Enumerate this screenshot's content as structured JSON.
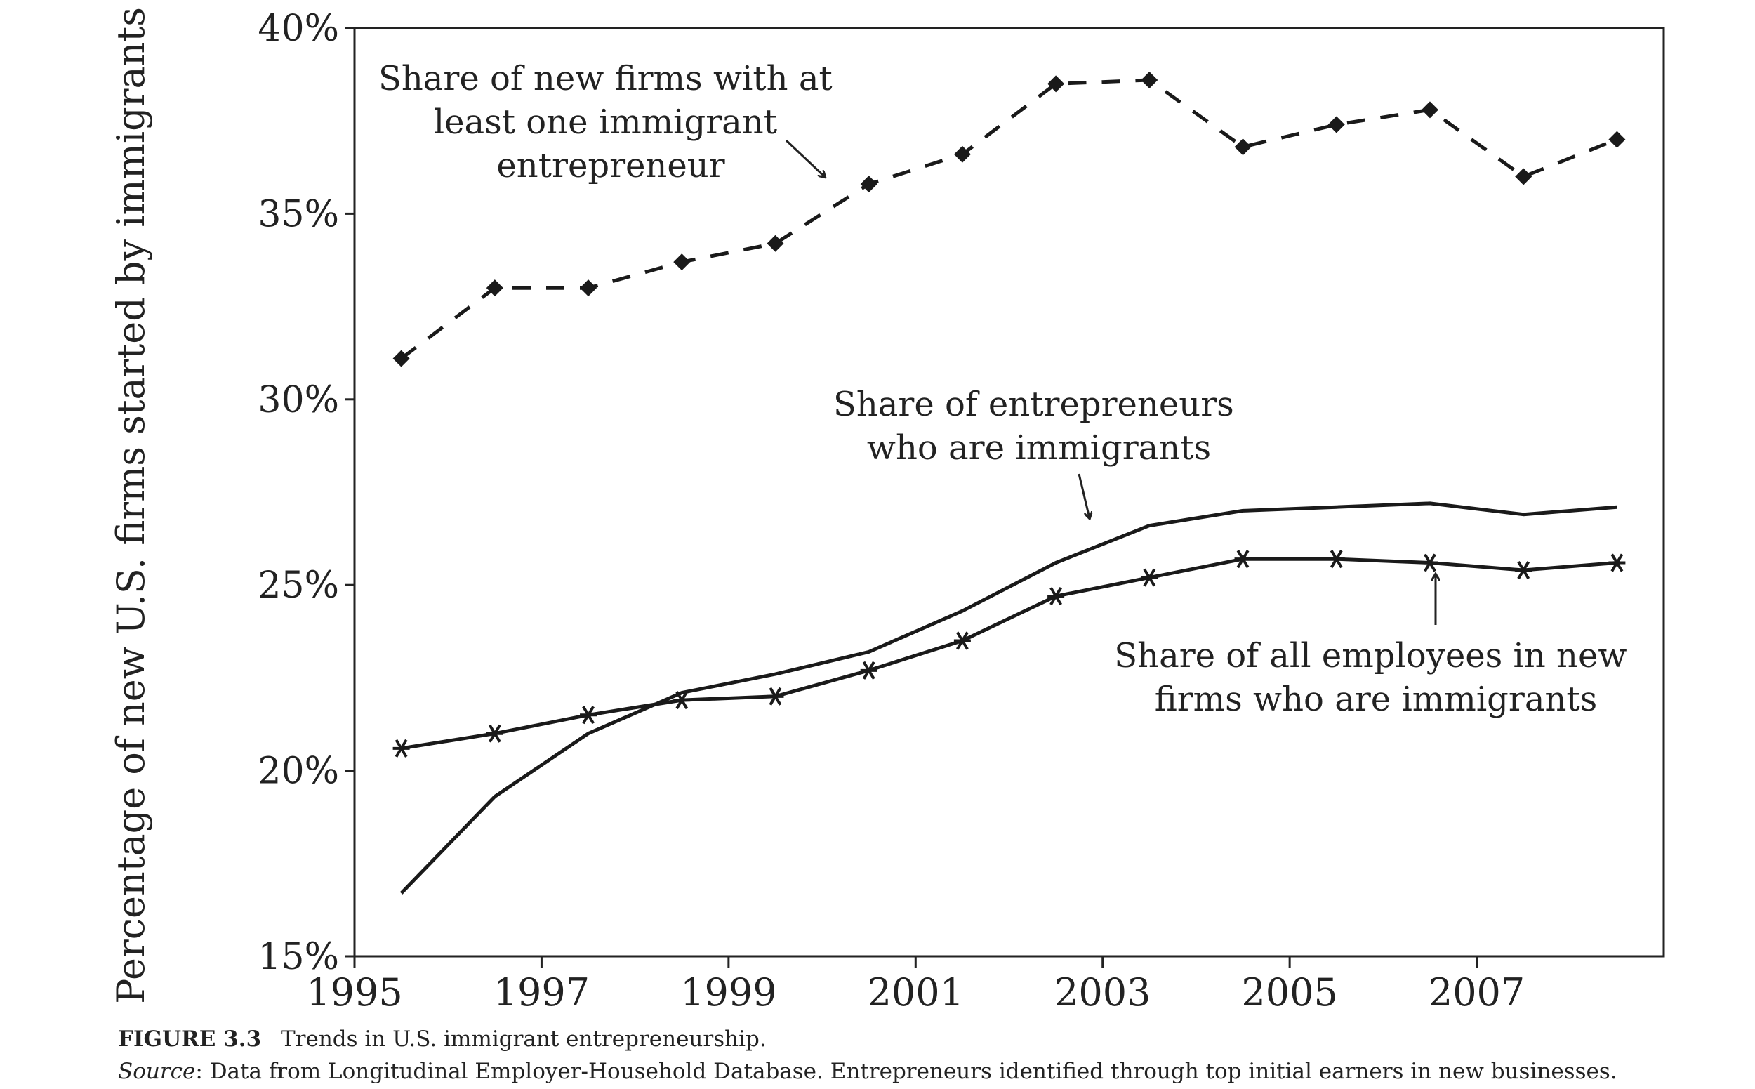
{
  "chart_data": {
    "type": "line",
    "title": "",
    "xlabel": "",
    "ylabel": "Percentage of new U.S. firms started by immigrants",
    "xlim": [
      1995,
      2009
    ],
    "ylim": [
      15,
      40
    ],
    "x_ticks": [
      1995,
      1997,
      1999,
      2001,
      2003,
      2005,
      2007
    ],
    "x_tick_labels": [
      "1995",
      "1997",
      "1999",
      "2001",
      "2003",
      "2005",
      "2007"
    ],
    "y_ticks": [
      15,
      20,
      25,
      30,
      35,
      40
    ],
    "y_tick_labels": [
      "15%",
      "20%",
      "25%",
      "30%",
      "35%",
      "40%"
    ],
    "grid": false,
    "series": [
      {
        "name": "Share of new firms with at least one immigrant entrepreneur",
        "style": "dashed",
        "marker": "diamond",
        "x": [
          1995.5,
          1996.5,
          1997.5,
          1998.5,
          1999.5,
          2000.5,
          2001.5,
          2002.5,
          2003.5,
          2004.5,
          2005.5,
          2006.5,
          2007.5,
          2008.5
        ],
        "values": [
          31.1,
          33.0,
          33.0,
          33.7,
          34.2,
          35.8,
          36.6,
          38.5,
          38.6,
          36.8,
          37.4,
          37.8,
          36.0,
          37.0
        ]
      },
      {
        "name": "Share of entrepreneurs who are immigrants",
        "style": "solid",
        "marker": "none",
        "x": [
          1995.5,
          1996.5,
          1997.5,
          1998.5,
          1999.5,
          2000.5,
          2001.5,
          2002.5,
          2003.5,
          2004.5,
          2005.5,
          2006.5,
          2007.5,
          2008.5
        ],
        "values": [
          16.7,
          19.3,
          21.0,
          22.1,
          22.6,
          23.2,
          24.3,
          25.6,
          26.6,
          27.0,
          27.1,
          27.2,
          26.9,
          27.1
        ]
      },
      {
        "name": "Share of all employees in new firms who are immigrants",
        "style": "solid",
        "marker": "asterisk",
        "x": [
          1995.5,
          1996.5,
          1997.5,
          1998.5,
          1999.5,
          2000.5,
          2001.5,
          2002.5,
          2003.5,
          2004.5,
          2005.5,
          2006.5,
          2007.5,
          2008.5
        ],
        "values": [
          20.6,
          21.0,
          21.5,
          21.9,
          22.0,
          22.7,
          23.5,
          24.7,
          25.2,
          25.7,
          25.7,
          25.6,
          25.4,
          25.6
        ]
      }
    ],
    "annotations": [
      {
        "lines": [
          "Share of new firms with at",
          "least one immigrant",
          "entrepreneur"
        ],
        "series": 0
      },
      {
        "lines": [
          "Share of entrepreneurs",
          "who are immigrants"
        ],
        "series": 1
      },
      {
        "lines": [
          "Share of all employees in new",
          "firms who are immigrants"
        ],
        "series": 2
      }
    ]
  },
  "caption": {
    "figure_label": "FIGURE 3.3",
    "figure_title": "Trends in U.S. immigrant entrepreneurship.",
    "source_label": "Source",
    "source_text": ": Data from Longitudinal Employer-Household Database. Entrepreneurs identified through top initial earners in new businesses."
  }
}
